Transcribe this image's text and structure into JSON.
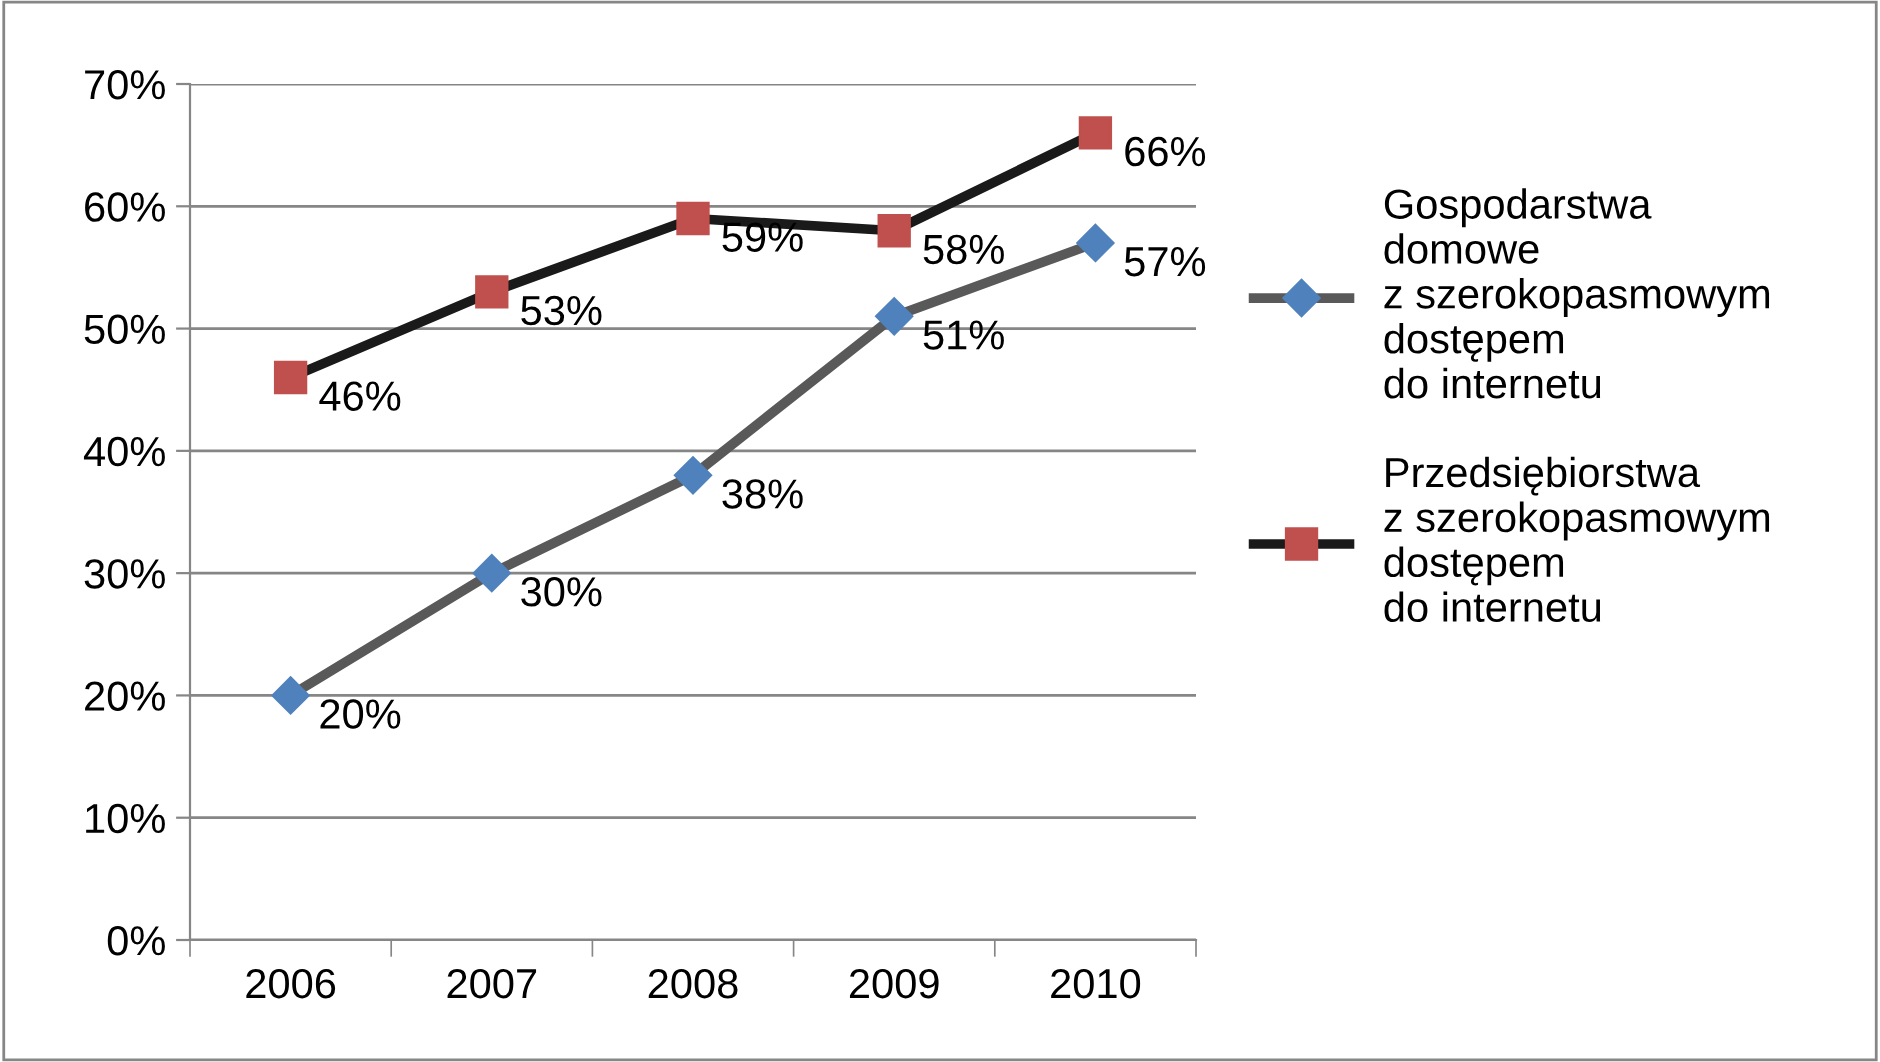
{
  "chart_data": {
    "type": "line",
    "categories": [
      "2006",
      "2007",
      "2008",
      "2009",
      "2010"
    ],
    "series": [
      {
        "name": "Gospodarstwa\ndomowe\nz szerokopasmowym\ndostępem\ndo internetu",
        "color": "#4f81bd",
        "marker": "diamond",
        "values": [
          20,
          30,
          38,
          51,
          57
        ],
        "value_labels": [
          "20%",
          "30%",
          "38%",
          "51%",
          "57%"
        ]
      },
      {
        "name": "Przedsiębiorstwa\nz szerokopasmowym\ndostępem\ndo internetu",
        "color": "#c0504d",
        "marker": "square",
        "values": [
          46,
          53,
          59,
          58,
          66
        ],
        "value_labels": [
          "46%",
          "53%",
          "59%",
          "58%",
          "66%"
        ]
      }
    ],
    "ylim": [
      0,
      70
    ],
    "yticks": [
      {
        "value": 0,
        "label": "0%"
      },
      {
        "value": 10,
        "label": "10%"
      },
      {
        "value": 20,
        "label": "20%"
      },
      {
        "value": 30,
        "label": "30%"
      },
      {
        "value": 40,
        "label": "40%"
      },
      {
        "value": 50,
        "label": "50%"
      },
      {
        "value": 60,
        "label": "60%"
      },
      {
        "value": 70,
        "label": "70%"
      }
    ],
    "grid": "y",
    "legend": "right",
    "line_style": "solid"
  }
}
